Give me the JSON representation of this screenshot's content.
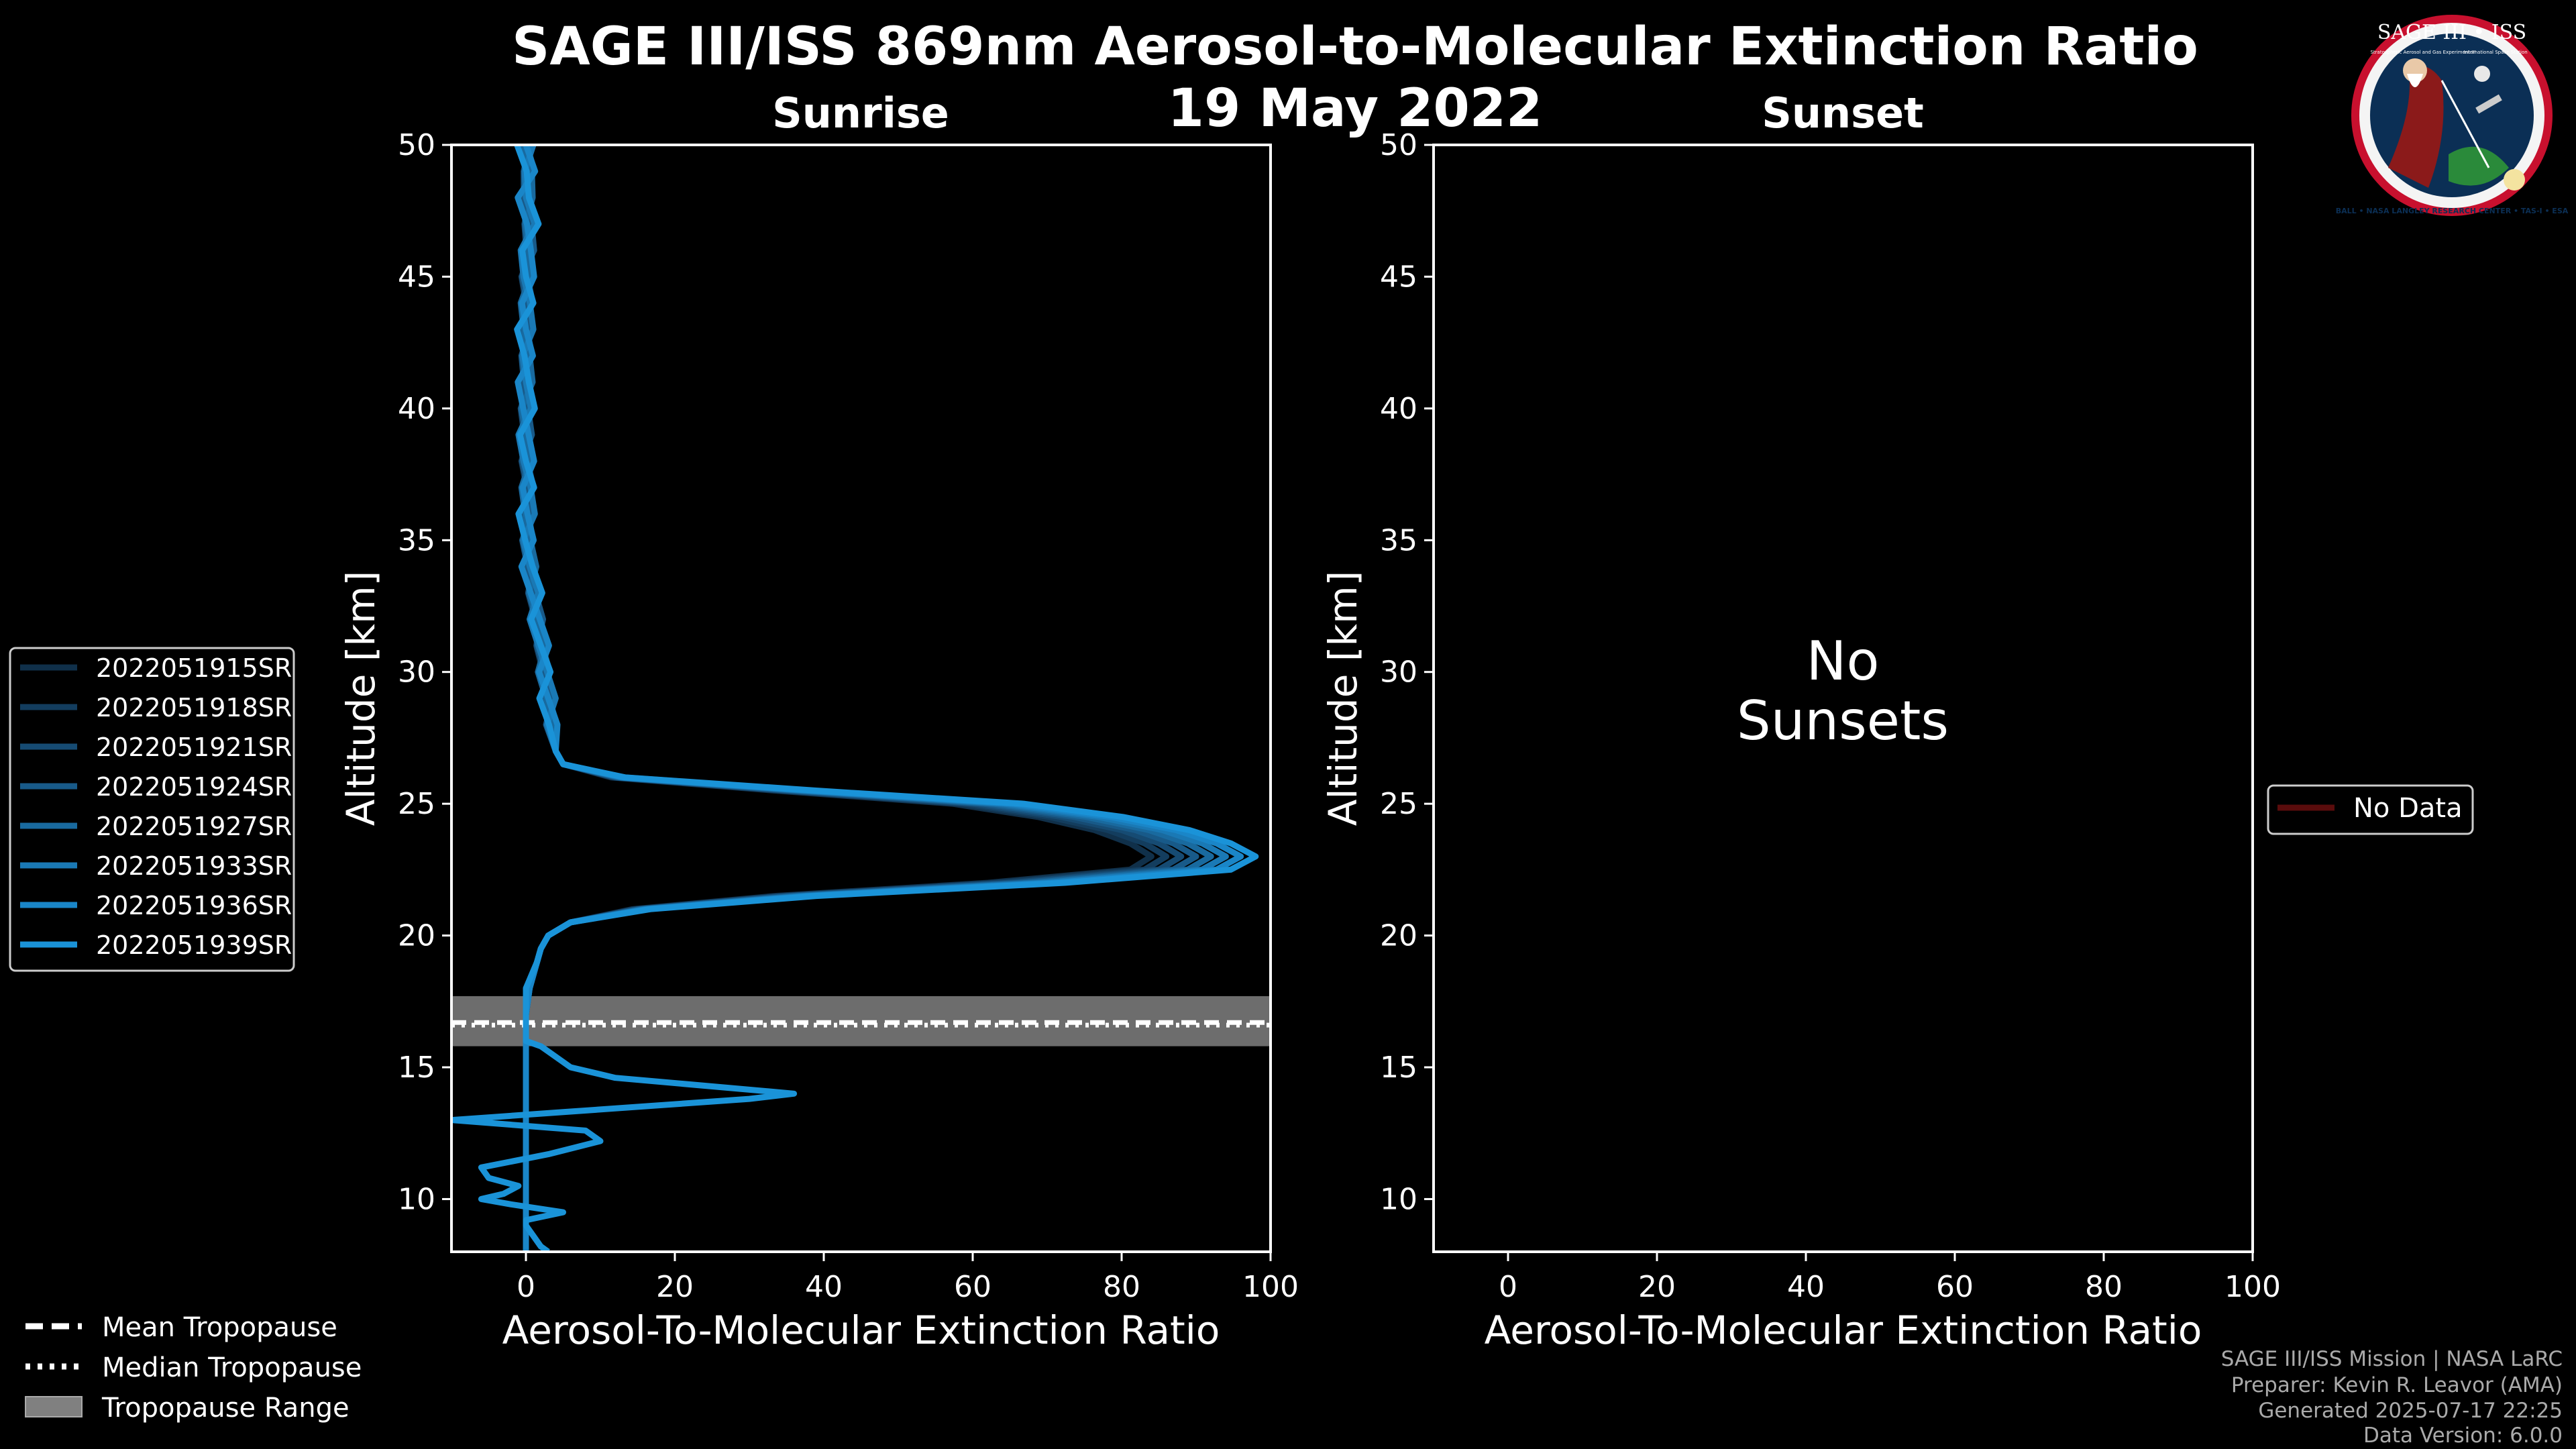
{
  "title_line1": "SAGE III/ISS 869nm Aerosol-to-Molecular Extinction Ratio",
  "title_line2": "19 May 2022",
  "logo": {
    "top_text": "SAGE III • ISS",
    "small_left": "Stratospheric Aerosol and Gas Experiment III",
    "small_right": "International Space Station",
    "ring_text": "BALL • NASA LANGLEY RESEARCH CENTER • TAS-I • ESA"
  },
  "footer": {
    "mission": "SAGE III/ISS Mission | NASA LaRC",
    "preparer": "Preparer: Kevin R. Leavor (AMA)",
    "generated": "Generated 2025-07-17 22:25",
    "version": "Data Version: 6.0.0"
  },
  "legend_profiles": [
    "2022051915SR",
    "2022051918SR",
    "2022051921SR",
    "2022051924SR",
    "2022051927SR",
    "2022051933SR",
    "2022051936SR",
    "2022051939SR"
  ],
  "legend_tropopause": {
    "mean": "Mean Tropopause",
    "median": "Median Tropopause",
    "range": "Tropopause Range"
  },
  "legend_sunset": "No Data",
  "no_sunsets_line1": "No",
  "no_sunsets_line2": "Sunsets",
  "colors": {
    "profiles": [
      "#10304a",
      "#133d5e",
      "#164b73",
      "#185a89",
      "#196a9f",
      "#1a79b5",
      "#1a86c8",
      "#1a93d8"
    ],
    "tropo_band": "#808080",
    "nodata": "#5a0c0c"
  },
  "chart_data": [
    {
      "type": "line",
      "panel": "Sunrise",
      "title": "Sunrise",
      "xlabel": "Aerosol-To-Molecular Extinction Ratio",
      "ylabel": "Altitude [km]",
      "xlim": [
        -10,
        100
      ],
      "ylim": [
        8,
        50
      ],
      "xticks": [
        0,
        20,
        40,
        60,
        80,
        100
      ],
      "yticks": [
        10,
        15,
        20,
        25,
        30,
        35,
        40,
        45,
        50
      ],
      "tropopause": {
        "mean": 16.7,
        "median": 16.6,
        "range": [
          15.8,
          17.7
        ]
      },
      "base_profile": {
        "alt": [
          50,
          49,
          48,
          47,
          46,
          45,
          44,
          43,
          42,
          41,
          40,
          39,
          38,
          37,
          36,
          35,
          34,
          33,
          32,
          31,
          30,
          29,
          28,
          27,
          26.5,
          26,
          25.5,
          25,
          24.5,
          24,
          23.5,
          23,
          22.5,
          22,
          21.5,
          21,
          20.5,
          20,
          19.5,
          19,
          18,
          17,
          16,
          15,
          14,
          13,
          12,
          11,
          10,
          9,
          8
        ],
        "ratio": [
          0,
          0.5,
          0,
          0.5,
          0.3,
          0,
          0.2,
          0,
          0.2,
          0,
          0,
          0,
          0,
          0.3,
          0.2,
          0.3,
          0.5,
          1,
          1.5,
          2,
          2.5,
          3,
          3.5,
          4,
          5,
          12,
          35,
          60,
          72,
          80,
          85,
          88,
          85,
          65,
          35,
          15,
          6,
          3,
          2,
          1.5,
          0.5,
          0,
          0,
          0,
          0,
          0,
          0,
          0,
          0,
          0,
          0
        ]
      },
      "series": [
        {
          "name": "2022051915SR",
          "peak": 84,
          "jitter": 0.5
        },
        {
          "name": "2022051918SR",
          "peak": 86,
          "jitter": 0.6
        },
        {
          "name": "2022051921SR",
          "peak": 88,
          "jitter": 0.7
        },
        {
          "name": "2022051924SR",
          "peak": 90,
          "jitter": 0.8
        },
        {
          "name": "2022051927SR",
          "peak": 92,
          "jitter": 0.9
        },
        {
          "name": "2022051933SR",
          "peak": 94,
          "jitter": 1.0
        },
        {
          "name": "2022051936SR",
          "peak": 96,
          "jitter": 1.1
        },
        {
          "name": "2022051939SR",
          "peak": 98,
          "jitter": 1.2,
          "low_alt": [
            18,
            17,
            16,
            15.8,
            15,
            14.6,
            14,
            13.8,
            13.3,
            13,
            12.6,
            12.2,
            11.7,
            11.2,
            10.8,
            10.5,
            10.2,
            10,
            9.8,
            9.5,
            9.2,
            9,
            8.6,
            8.2,
            8
          ],
          "low_ratio": [
            0,
            0,
            0,
            2,
            6,
            12,
            36,
            30,
            5,
            -10,
            8,
            10,
            3,
            -6,
            -5,
            -1,
            -3,
            -6,
            -2,
            5,
            0,
            0,
            1,
            2,
            3
          ]
        }
      ]
    },
    {
      "type": "line",
      "panel": "Sunset",
      "title": "Sunset",
      "xlabel": "Aerosol-To-Molecular Extinction Ratio",
      "ylabel": "Altitude [km]",
      "xlim": [
        -10,
        100
      ],
      "ylim": [
        8,
        50
      ],
      "xticks": [
        0,
        20,
        40,
        60,
        80,
        100
      ],
      "yticks": [
        10,
        15,
        20,
        25,
        30,
        35,
        40,
        45,
        50
      ],
      "series": []
    }
  ]
}
